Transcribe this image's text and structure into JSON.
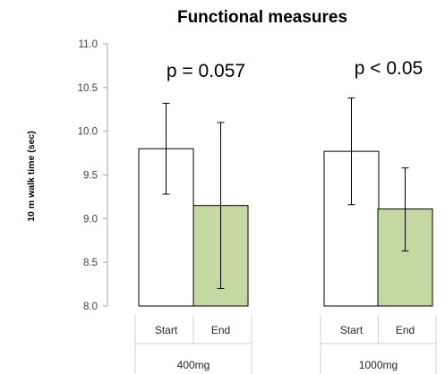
{
  "chart_data": {
    "type": "bar",
    "title": "Functional measures",
    "ylabel": "10 m walk time (sec)",
    "ylim": [
      8.0,
      11.0
    ],
    "yticks": [
      "8.0",
      "8.5",
      "9.0",
      "9.5",
      "10.0",
      "10.5",
      "11.0"
    ],
    "grid": false,
    "groups": [
      {
        "label": "400mg",
        "annotation": "p = 0.057",
        "bars": [
          {
            "category": "Start",
            "value": 9.8,
            "err_low": 9.28,
            "err_high": 10.32,
            "color": "#ffffff"
          },
          {
            "category": "End",
            "value": 9.15,
            "err_low": 8.2,
            "err_high": 10.1,
            "color": "#c4d8a2"
          }
        ]
      },
      {
        "label": "1000mg",
        "annotation": "p < 0.05",
        "bars": [
          {
            "category": "Start",
            "value": 9.77,
            "err_low": 9.16,
            "err_high": 10.38,
            "color": "#ffffff"
          },
          {
            "category": "End",
            "value": 9.11,
            "err_low": 8.63,
            "err_high": 9.58,
            "color": "#c4d8a2"
          }
        ]
      }
    ]
  }
}
